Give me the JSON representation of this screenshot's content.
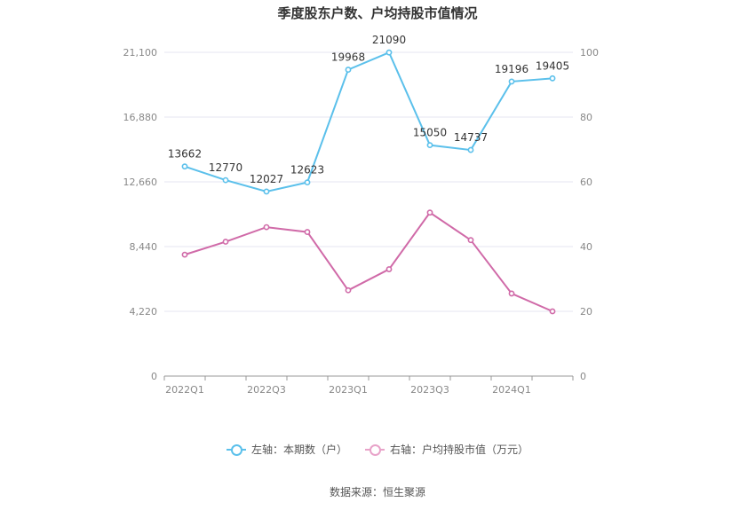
{
  "chart_data": {
    "type": "line",
    "title": "季度股东户数、户均持股市值情况",
    "x": [
      "2022Q1",
      "2022Q2",
      "2022Q3",
      "2022Q4",
      "2023Q1",
      "2023Q2",
      "2023Q3",
      "2023Q4",
      "2024Q1",
      "2024Q2"
    ],
    "x_tick_labels": [
      "2022Q1",
      "2022Q3",
      "2023Q1",
      "2023Q3",
      "2024Q1"
    ],
    "left_axis": {
      "ticks": [
        "0",
        "4,220",
        "8,440",
        "12,660",
        "16,880",
        "21,100"
      ],
      "ylim": [
        0,
        21100
      ]
    },
    "right_axis": {
      "ticks": [
        "0",
        "20",
        "40",
        "60",
        "80",
        "100"
      ],
      "ylim": [
        0,
        100
      ]
    },
    "series": [
      {
        "name": "左轴：本期数（户）",
        "axis": "left",
        "color": "#5bc0eb",
        "values": [
          13662,
          12770,
          12027,
          12623,
          19968,
          21090,
          15050,
          14737,
          19196,
          19405
        ],
        "labels": [
          "13662",
          "12770",
          "12027",
          "12623",
          "19968",
          "21090",
          "15050",
          "14737",
          "19196",
          "19405"
        ]
      },
      {
        "name": "右轴：户均持股市值（万元）",
        "axis": "right",
        "color": "#d06aa8",
        "values": [
          37.5,
          41.5,
          46.0,
          44.5,
          26.5,
          33.0,
          50.5,
          42.0,
          25.5,
          20.0
        ]
      }
    ],
    "grid": true,
    "legend_position": "bottom"
  },
  "legend": [
    {
      "label": "左轴：本期数（户）",
      "color": "#5bc0eb"
    },
    {
      "label": "右轴：户均持股市值（万元）",
      "color": "#e8a3c9"
    }
  ],
  "source": "数据来源：恒生聚源"
}
